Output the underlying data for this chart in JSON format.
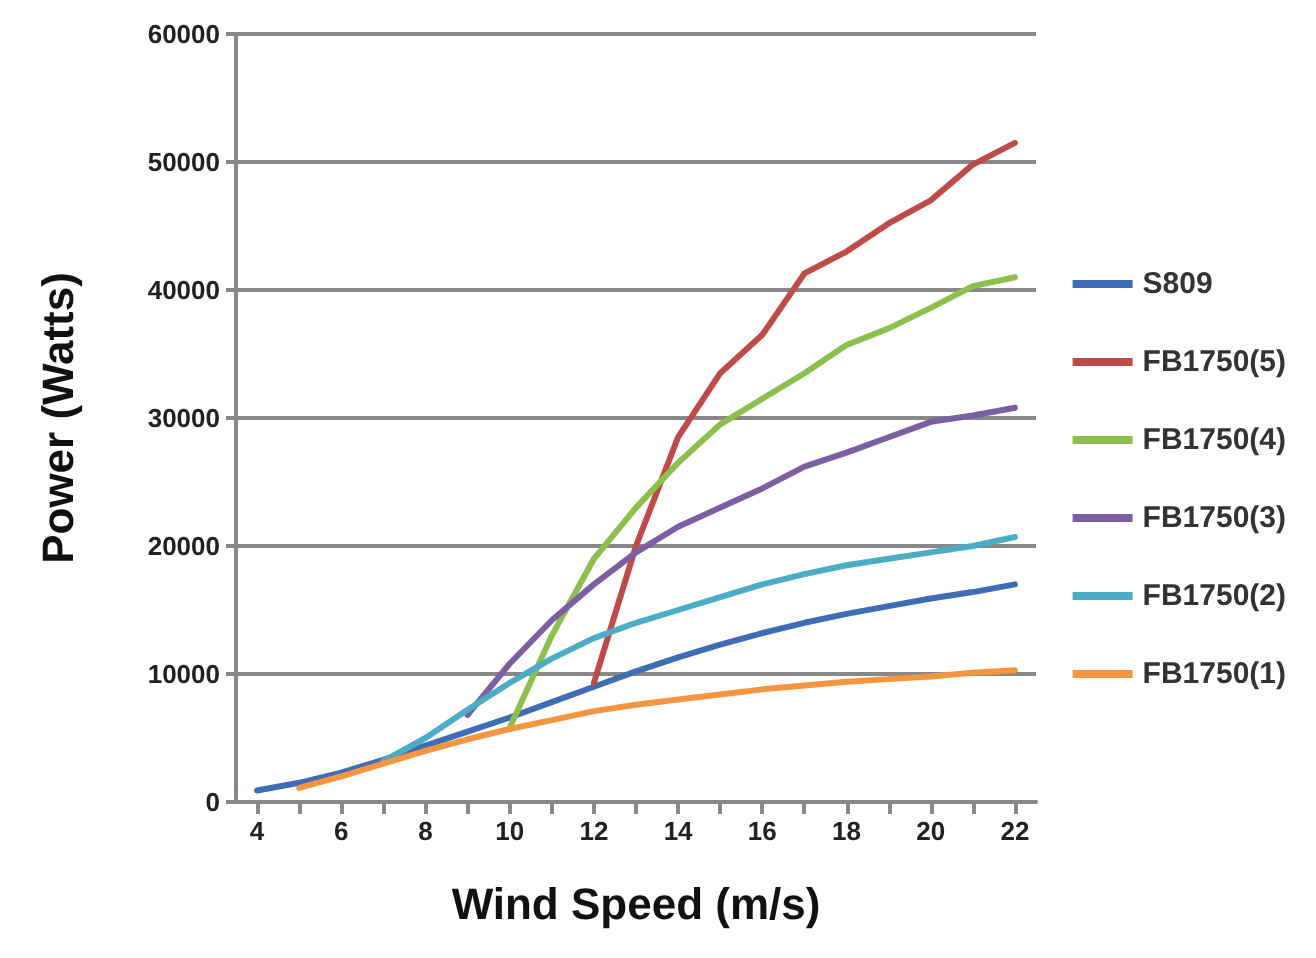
{
  "chart_data": {
    "type": "line",
    "xlabel": "Wind Speed (m/s)",
    "ylabel": "Power (Watts)",
    "xlim": [
      3.5,
      22.5
    ],
    "xticks": [
      4,
      {
        "value": 5,
        "label": null
      },
      6,
      {
        "value": 7,
        "label": null
      },
      8,
      {
        "value": 9,
        "label": null
      },
      10,
      {
        "value": 11,
        "label": null
      },
      12,
      {
        "value": 13,
        "label": null
      },
      14,
      {
        "value": 15,
        "label": null
      },
      16,
      {
        "value": 17,
        "label": null
      },
      18,
      {
        "value": 19,
        "label": null
      },
      20,
      {
        "value": 21,
        "label": null
      },
      22
    ],
    "ylim": [
      0,
      60000
    ],
    "yticks": [
      0,
      10000,
      20000,
      30000,
      40000,
      50000,
      60000
    ],
    "grid": "y",
    "legend": "right",
    "marker": "none",
    "line_style": "solid",
    "series": [
      {
        "name": "S809",
        "color": "#3e6db5",
        "x": [
          4,
          5,
          6,
          7,
          8,
          9,
          10,
          11,
          12,
          13,
          14,
          15,
          16,
          17,
          18,
          19,
          20,
          21,
          22
        ],
        "values": [
          900,
          1500,
          2300,
          3300,
          4400,
          5500,
          6600,
          7800,
          9000,
          10200,
          11300,
          12300,
          13200,
          14000,
          14700,
          15300,
          15900,
          16400,
          17000
        ]
      },
      {
        "name": "FB1750(5)",
        "color": "#be4b48",
        "x": [
          12,
          13,
          14,
          15,
          16,
          17,
          18,
          19,
          20,
          21,
          22
        ],
        "values": [
          9300,
          20000,
          28500,
          33500,
          36500,
          41300,
          43000,
          45200,
          47000,
          49800,
          51500
        ]
      },
      {
        "name": "FB1750(4)",
        "color": "#8cbf4b",
        "x": [
          10,
          11,
          12,
          13,
          14,
          15,
          16,
          17,
          18,
          19,
          20,
          21,
          22
        ],
        "values": [
          5800,
          13000,
          19000,
          23000,
          26500,
          29500,
          31500,
          33500,
          35700,
          37000,
          38600,
          40300,
          41000
        ]
      },
      {
        "name": "FB1750(3)",
        "color": "#7c5ea2",
        "x": [
          9,
          10,
          11,
          12,
          13,
          14,
          15,
          16,
          17,
          18,
          19,
          20,
          21,
          22
        ],
        "values": [
          6800,
          10800,
          14200,
          17000,
          19500,
          21500,
          23000,
          24500,
          26200,
          27300,
          28500,
          29700,
          30200,
          30800
        ]
      },
      {
        "name": "FB1750(2)",
        "color": "#4bacc6",
        "x": [
          7,
          8,
          9,
          10,
          11,
          12,
          13,
          14,
          15,
          16,
          17,
          18,
          19,
          20,
          21,
          22
        ],
        "values": [
          3200,
          5000,
          7200,
          9300,
          11200,
          12800,
          14000,
          15000,
          16000,
          17000,
          17800,
          18500,
          19000,
          19500,
          20000,
          20700
        ]
      },
      {
        "name": "FB1750(1)",
        "color": "#f59540",
        "x": [
          5,
          6,
          7,
          8,
          9,
          10,
          11,
          12,
          13,
          14,
          15,
          16,
          17,
          18,
          19,
          20,
          21,
          22
        ],
        "values": [
          1100,
          2000,
          3000,
          4000,
          4900,
          5700,
          6400,
          7100,
          7600,
          8000,
          8400,
          8800,
          9100,
          9400,
          9600,
          9800,
          10100,
          10300
        ]
      }
    ]
  }
}
